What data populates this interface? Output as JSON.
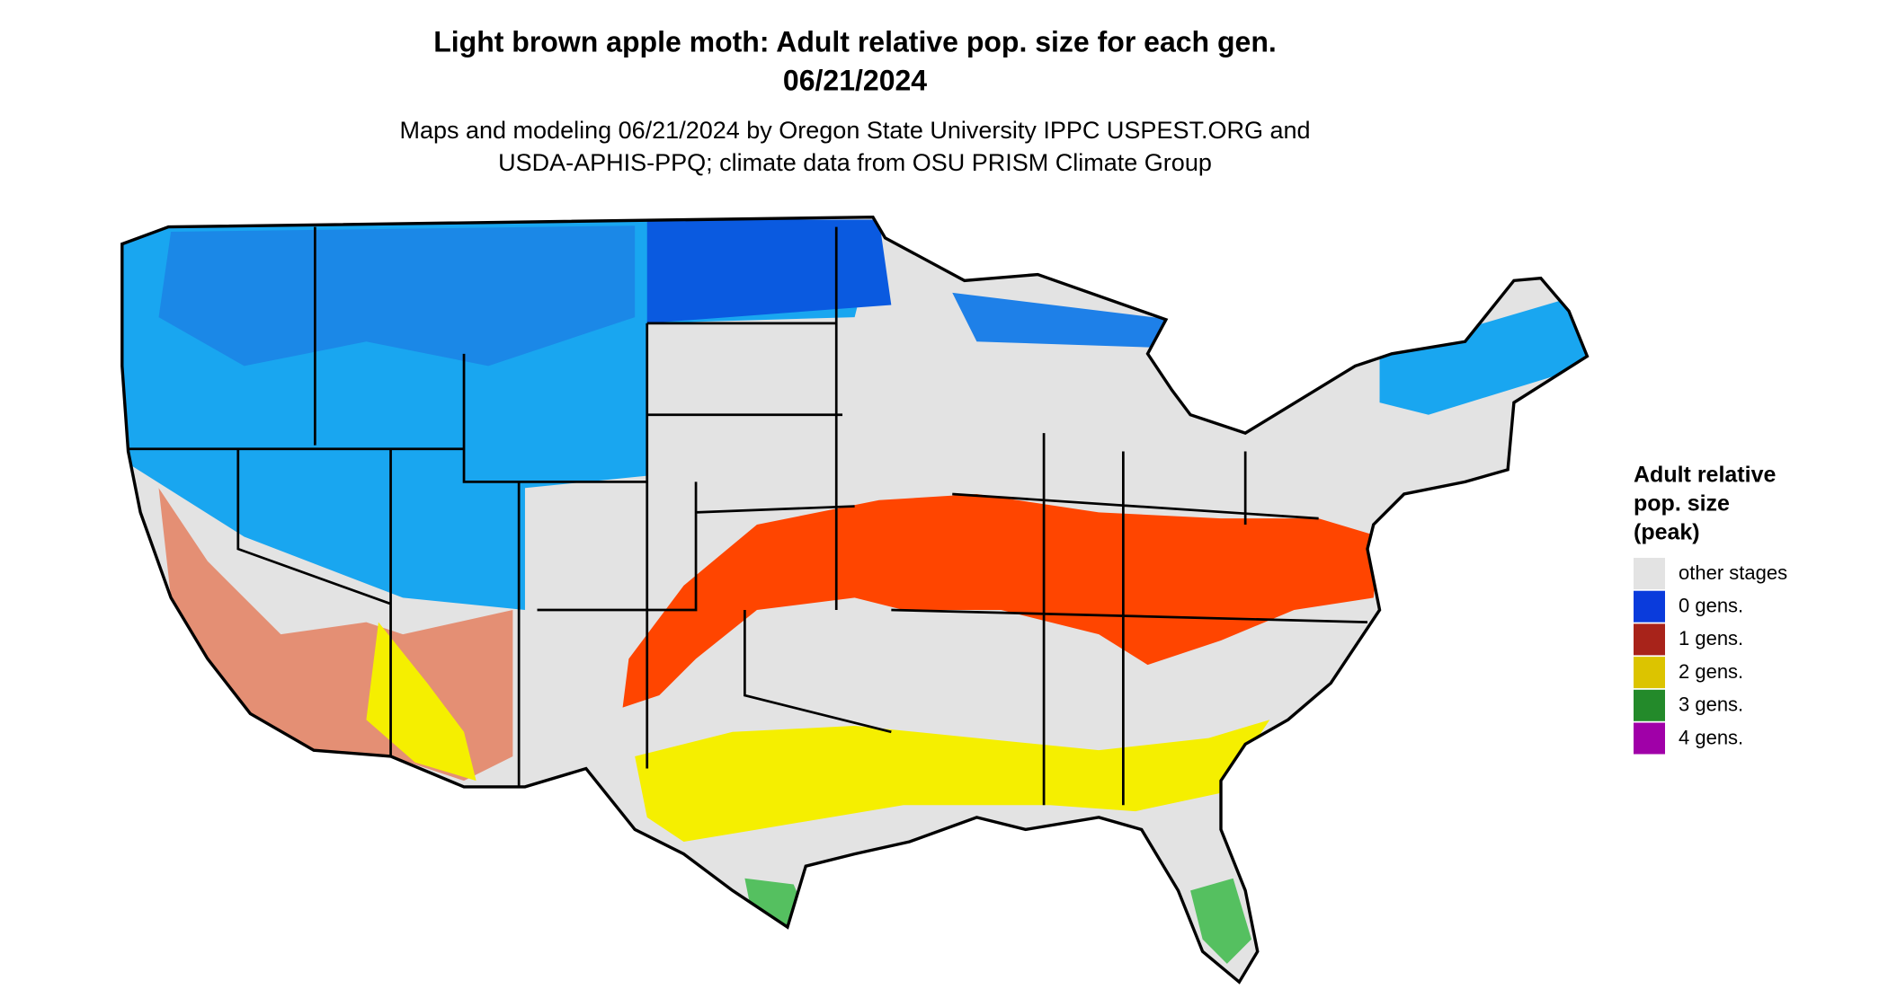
{
  "header": {
    "title": [
      "Light brown apple moth: Adult relative pop. size for each gen.",
      "06/21/2024"
    ],
    "subtitle": [
      "Maps and modeling 06/21/2024 by Oregon State University IPPC USPEST.ORG and",
      "USDA-APHIS-PPQ; climate data from OSU PRISM Climate Group"
    ]
  },
  "legend": {
    "title": [
      "Adult relative",
      "pop. size",
      "(peak)"
    ],
    "items": [
      {
        "label": "other stages",
        "color": "#e3e3e3"
      },
      {
        "label": "0 gens.",
        "color": "#0a3bdc"
      },
      {
        "label": "1 gens.",
        "color": "#a8231a"
      },
      {
        "label": "2 gens.",
        "color": "#dcc400"
      },
      {
        "label": "3 gens.",
        "color": "#238a2a"
      },
      {
        "label": "4 gens.",
        "color": "#a000a8"
      }
    ]
  }
}
